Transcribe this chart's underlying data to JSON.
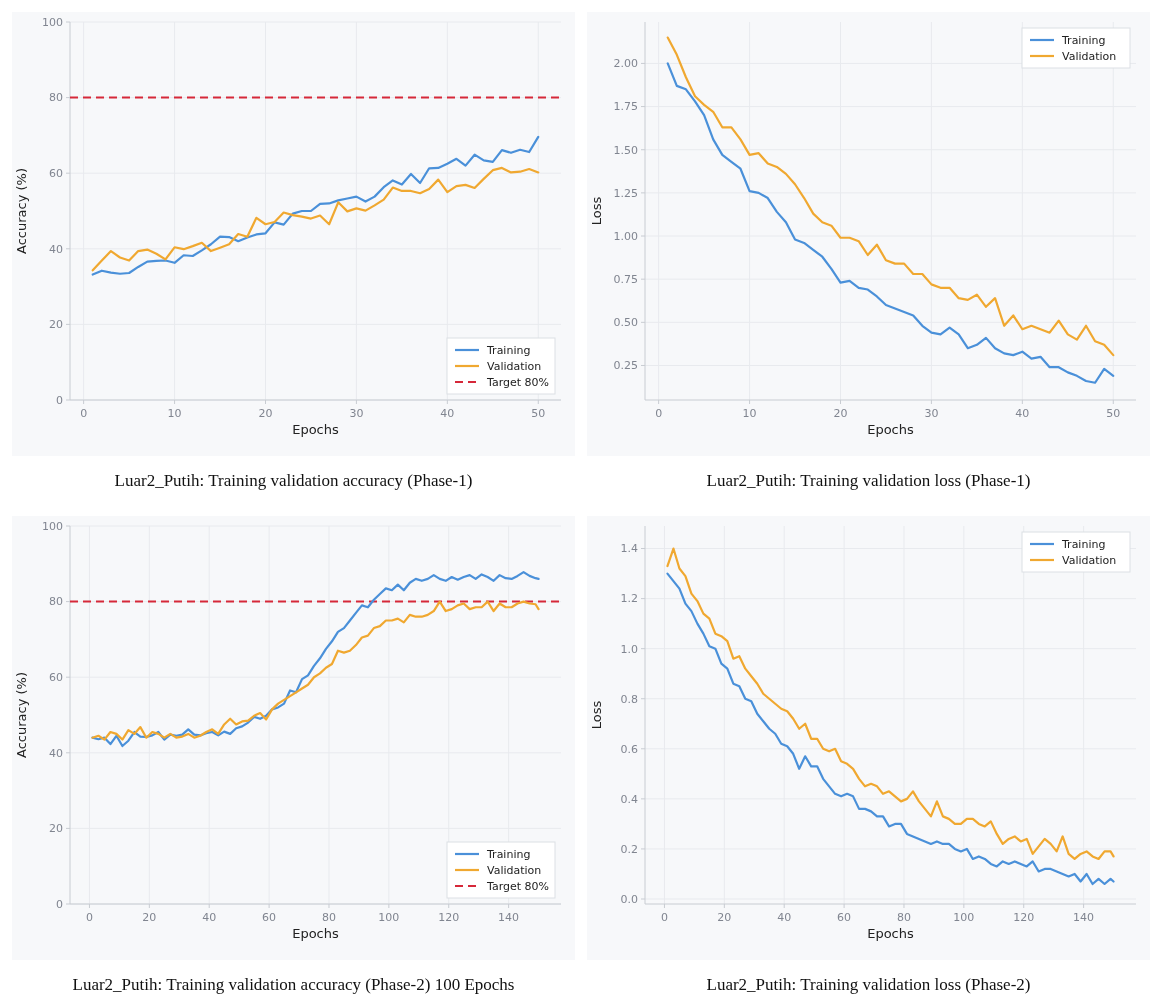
{
  "chart_data": [
    {
      "type": "line",
      "title": "Luar2_Putih: Training validation accuracy (Phase-1)",
      "xlabel": "Epochs",
      "ylabel": "Accuracy (%)",
      "grid": true,
      "legend": "bottom right",
      "xlim": [
        -1.5,
        52.5
      ],
      "ylim": [
        0,
        100
      ],
      "xticks": [
        0,
        10,
        20,
        30,
        40,
        50
      ],
      "yticks": [
        0,
        20,
        40,
        60,
        80,
        100
      ],
      "x": [
        1,
        2,
        3,
        4,
        5,
        6,
        7,
        8,
        9,
        10,
        11,
        12,
        13,
        14,
        15,
        16,
        17,
        18,
        19,
        20,
        21,
        22,
        23,
        24,
        25,
        26,
        27,
        28,
        29,
        30,
        31,
        32,
        33,
        34,
        35,
        36,
        37,
        38,
        39,
        40,
        41,
        42,
        43,
        44,
        45,
        46,
        47,
        48,
        49,
        50
      ],
      "series": [
        {
          "name": "Training",
          "color": "#4a90d9",
          "values": [
            33.2,
            34.2,
            33.7,
            33.4,
            33.6,
            35.2,
            36.6,
            36.8,
            36.9,
            36.3,
            38.3,
            38.1,
            39.6,
            41.2,
            43.2,
            43.1,
            42,
            43,
            43.8,
            44.1,
            47,
            46.4,
            49.3,
            50,
            50,
            51.9,
            52,
            52.8,
            53.3,
            53.8,
            52.5,
            53.8,
            56.3,
            58.1,
            57,
            59.8,
            57.4,
            61.3,
            61.4,
            62.5,
            63.8,
            62,
            64.9,
            63.4,
            63,
            66.1,
            65.4,
            66.2,
            65.6,
            69.6
          ]
        },
        {
          "name": "Validation",
          "color": "#f0a830",
          "values": [
            34.3,
            36.9,
            39.4,
            37.7,
            36.9,
            39.4,
            39.8,
            38.7,
            37.2,
            40.4,
            39.9,
            40.7,
            41.6,
            39.4,
            40.3,
            41.2,
            43.9,
            43.2,
            48.2,
            46.5,
            47.1,
            49.6,
            48.9,
            48.5,
            48,
            48.8,
            46.5,
            52.3,
            49.9,
            50.7,
            50.1,
            51.5,
            53,
            56.2,
            55.3,
            55.3,
            54.7,
            55.8,
            58.3,
            55,
            56.6,
            56.9,
            56.1,
            58.5,
            60.8,
            61.4,
            60.2,
            60.4,
            61.1,
            60.2
          ]
        }
      ],
      "ref_lines": [
        {
          "axis": "y",
          "value": 80,
          "label": "Target 80%",
          "color": "#d62839",
          "line_style": "dashed"
        }
      ]
    },
    {
      "type": "line",
      "title": "Luar2_Putih: Training validation loss (Phase-1)",
      "xlabel": "Epochs",
      "ylabel": "Loss",
      "grid": true,
      "legend": "top right",
      "xlim": [
        -1.5,
        52.5
      ],
      "ylim": [
        0.05,
        2.24
      ],
      "xticks": [
        0,
        10,
        20,
        30,
        40,
        50
      ],
      "yticks": [
        {
          "value": 0.25,
          "label": "0.25"
        },
        {
          "value": 0.5,
          "label": "0.50"
        },
        {
          "value": 0.75,
          "label": "0.75"
        },
        {
          "value": 1,
          "label": "1.00"
        },
        {
          "value": 1.25,
          "label": "1.25"
        },
        {
          "value": 1.5,
          "label": "1.50"
        },
        {
          "value": 1.75,
          "label": "1.75"
        },
        {
          "value": 2,
          "label": "2.00"
        }
      ],
      "x": [
        1,
        2,
        3,
        4,
        5,
        6,
        7,
        8,
        9,
        10,
        11,
        12,
        13,
        14,
        15,
        16,
        17,
        18,
        19,
        20,
        21,
        22,
        23,
        24,
        25,
        26,
        27,
        28,
        29,
        30,
        31,
        32,
        33,
        34,
        35,
        36,
        37,
        38,
        39,
        40,
        41,
        42,
        43,
        44,
        45,
        46,
        47,
        48,
        49,
        50
      ],
      "series": [
        {
          "name": "Training",
          "color": "#4a90d9",
          "values": [
            2.0,
            1.87,
            1.85,
            1.78,
            1.7,
            1.56,
            1.47,
            1.43,
            1.39,
            1.26,
            1.25,
            1.22,
            1.14,
            1.08,
            0.98,
            0.96,
            0.92,
            0.88,
            0.81,
            0.73,
            0.74,
            0.7,
            0.69,
            0.65,
            0.6,
            0.58,
            0.56,
            0.54,
            0.48,
            0.44,
            0.43,
            0.47,
            0.43,
            0.35,
            0.37,
            0.41,
            0.35,
            0.32,
            0.31,
            0.33,
            0.29,
            0.3,
            0.24,
            0.24,
            0.21,
            0.19,
            0.16,
            0.15,
            0.23,
            0.19
          ]
        },
        {
          "name": "Validation",
          "color": "#f0a830",
          "values": [
            2.15,
            2.05,
            1.92,
            1.81,
            1.76,
            1.72,
            1.63,
            1.63,
            1.56,
            1.47,
            1.48,
            1.42,
            1.4,
            1.36,
            1.3,
            1.22,
            1.13,
            1.08,
            1.06,
            0.99,
            0.99,
            0.97,
            0.89,
            0.95,
            0.86,
            0.84,
            0.84,
            0.78,
            0.78,
            0.72,
            0.7,
            0.7,
            0.64,
            0.63,
            0.66,
            0.59,
            0.64,
            0.48,
            0.54,
            0.46,
            0.48,
            0.46,
            0.44,
            0.51,
            0.43,
            0.4,
            0.48,
            0.39,
            0.37,
            0.31
          ]
        }
      ]
    },
    {
      "type": "line",
      "title": "Luar2_Putih: Training validation accuracy (Phase-2) 100 Epochs",
      "xlabel": "Epochs",
      "ylabel": "Accuracy (%)",
      "grid": true,
      "legend": "bottom right",
      "xlim": [
        -6.5,
        157.5
      ],
      "ylim": [
        0,
        100
      ],
      "xticks": [
        0,
        20,
        40,
        60,
        80,
        100,
        120,
        140
      ],
      "yticks": [
        0,
        20,
        40,
        60,
        80,
        100
      ],
      "x": [
        1,
        3,
        5,
        7,
        9,
        11,
        13,
        15,
        17,
        19,
        21,
        23,
        25,
        27,
        29,
        31,
        33,
        35,
        37,
        39,
        41,
        43,
        45,
        47,
        49,
        51,
        53,
        55,
        57,
        59,
        61,
        63,
        65,
        67,
        69,
        71,
        73,
        75,
        77,
        79,
        81,
        83,
        85,
        87,
        89,
        91,
        93,
        95,
        97,
        99,
        101,
        103,
        105,
        107,
        109,
        111,
        113,
        115,
        117,
        119,
        121,
        123,
        125,
        127,
        129,
        131,
        133,
        135,
        137,
        139,
        141,
        143,
        145,
        147,
        149,
        150
      ],
      "series": [
        {
          "name": "Training",
          "color": "#4a90d9",
          "values": [
            44,
            43.6,
            44,
            42.3,
            44.5,
            41.8,
            43.2,
            45.5,
            44.3,
            44.2,
            44.6,
            45.5,
            43.5,
            44.8,
            44.5,
            44.8,
            46.2,
            44.8,
            44.6,
            45.2,
            45.5,
            44.6,
            45.6,
            45,
            46.5,
            47,
            48,
            49.5,
            49,
            49.8,
            51.5,
            52,
            53,
            56.5,
            56,
            59.5,
            60.5,
            63,
            65,
            67.5,
            69.5,
            72,
            73,
            75,
            77,
            79,
            78.5,
            80.5,
            82,
            83.5,
            83,
            84.5,
            83,
            85,
            86,
            85.5,
            86,
            87,
            86,
            85.5,
            86.5,
            85.8,
            86.5,
            87,
            86,
            87.2,
            86.5,
            85.5,
            87,
            86.2,
            86,
            86.8,
            87.8,
            86.8,
            86.2,
            86
          ]
        },
        {
          "name": "Validation",
          "color": "#f0a830",
          "values": [
            44,
            44.5,
            43.5,
            45.5,
            45,
            43.5,
            46,
            45,
            46.8,
            44,
            45.5,
            45,
            44,
            45,
            44,
            44.3,
            45,
            44,
            44.5,
            45.5,
            46.2,
            45,
            47.5,
            49,
            47.5,
            48.3,
            48.5,
            49.8,
            50.5,
            48.8,
            51.5,
            53,
            54,
            55,
            56,
            57,
            58,
            60,
            61,
            62.5,
            63.5,
            67,
            66.5,
            67,
            68.5,
            70.5,
            71,
            73,
            73.5,
            75,
            75,
            75.5,
            74.5,
            76.5,
            76,
            76,
            76.5,
            77.5,
            80,
            77.5,
            78,
            79,
            79.5,
            78,
            78.5,
            78.5,
            80,
            77.5,
            79.5,
            78.5,
            78.5,
            79.5,
            80,
            79.5,
            79.3,
            78
          ]
        }
      ],
      "ref_lines": [
        {
          "axis": "y",
          "value": 80,
          "label": "Target 80%",
          "color": "#d62839",
          "line_style": "dashed"
        }
      ]
    },
    {
      "type": "line",
      "title": "Luar2_Putih: Training validation loss (Phase-2)",
      "xlabel": "Epochs",
      "ylabel": "Loss",
      "grid": true,
      "legend": "top right",
      "xlim": [
        -6.5,
        157.5
      ],
      "ylim": [
        -0.02,
        1.49
      ],
      "xticks": [
        0,
        20,
        40,
        60,
        80,
        100,
        120,
        140
      ],
      "yticks": [
        {
          "value": 0,
          "label": "0.0"
        },
        0.2,
        0.4,
        0.6,
        0.8,
        {
          "value": 1,
          "label": "1.0"
        },
        1.2,
        1.4
      ],
      "x": [
        1,
        3,
        5,
        7,
        9,
        11,
        13,
        15,
        17,
        19,
        21,
        23,
        25,
        27,
        29,
        31,
        33,
        35,
        37,
        39,
        41,
        43,
        45,
        47,
        49,
        51,
        53,
        55,
        57,
        59,
        61,
        63,
        65,
        67,
        69,
        71,
        73,
        75,
        77,
        79,
        81,
        83,
        85,
        87,
        89,
        91,
        93,
        95,
        97,
        99,
        101,
        103,
        105,
        107,
        109,
        111,
        113,
        115,
        117,
        119,
        121,
        123,
        125,
        127,
        129,
        131,
        133,
        135,
        137,
        139,
        141,
        143,
        145,
        147,
        149,
        150
      ],
      "series": [
        {
          "name": "Training",
          "color": "#4a90d9",
          "values": [
            1.3,
            1.27,
            1.24,
            1.18,
            1.15,
            1.1,
            1.06,
            1.01,
            1.0,
            0.94,
            0.92,
            0.86,
            0.85,
            0.8,
            0.79,
            0.74,
            0.71,
            0.68,
            0.66,
            0.62,
            0.61,
            0.58,
            0.52,
            0.57,
            0.53,
            0.53,
            0.48,
            0.45,
            0.42,
            0.41,
            0.42,
            0.41,
            0.36,
            0.36,
            0.35,
            0.33,
            0.33,
            0.29,
            0.3,
            0.3,
            0.26,
            0.25,
            0.24,
            0.23,
            0.22,
            0.23,
            0.22,
            0.22,
            0.2,
            0.19,
            0.2,
            0.16,
            0.17,
            0.16,
            0.14,
            0.13,
            0.15,
            0.14,
            0.15,
            0.14,
            0.13,
            0.15,
            0.11,
            0.12,
            0.12,
            0.11,
            0.1,
            0.09,
            0.1,
            0.07,
            0.1,
            0.06,
            0.08,
            0.06,
            0.08,
            0.07
          ]
        },
        {
          "name": "Validation",
          "color": "#f0a830",
          "values": [
            1.33,
            1.4,
            1.32,
            1.29,
            1.22,
            1.19,
            1.14,
            1.12,
            1.06,
            1.05,
            1.03,
            0.96,
            0.97,
            0.92,
            0.89,
            0.86,
            0.82,
            0.8,
            0.78,
            0.76,
            0.75,
            0.72,
            0.68,
            0.7,
            0.64,
            0.64,
            0.6,
            0.59,
            0.6,
            0.55,
            0.54,
            0.52,
            0.48,
            0.45,
            0.46,
            0.45,
            0.42,
            0.43,
            0.41,
            0.39,
            0.4,
            0.43,
            0.39,
            0.36,
            0.33,
            0.39,
            0.33,
            0.32,
            0.3,
            0.3,
            0.32,
            0.32,
            0.3,
            0.29,
            0.31,
            0.26,
            0.22,
            0.24,
            0.25,
            0.23,
            0.24,
            0.18,
            0.21,
            0.24,
            0.22,
            0.19,
            0.25,
            0.18,
            0.16,
            0.18,
            0.19,
            0.17,
            0.16,
            0.19,
            0.19,
            0.17
          ]
        }
      ]
    }
  ]
}
